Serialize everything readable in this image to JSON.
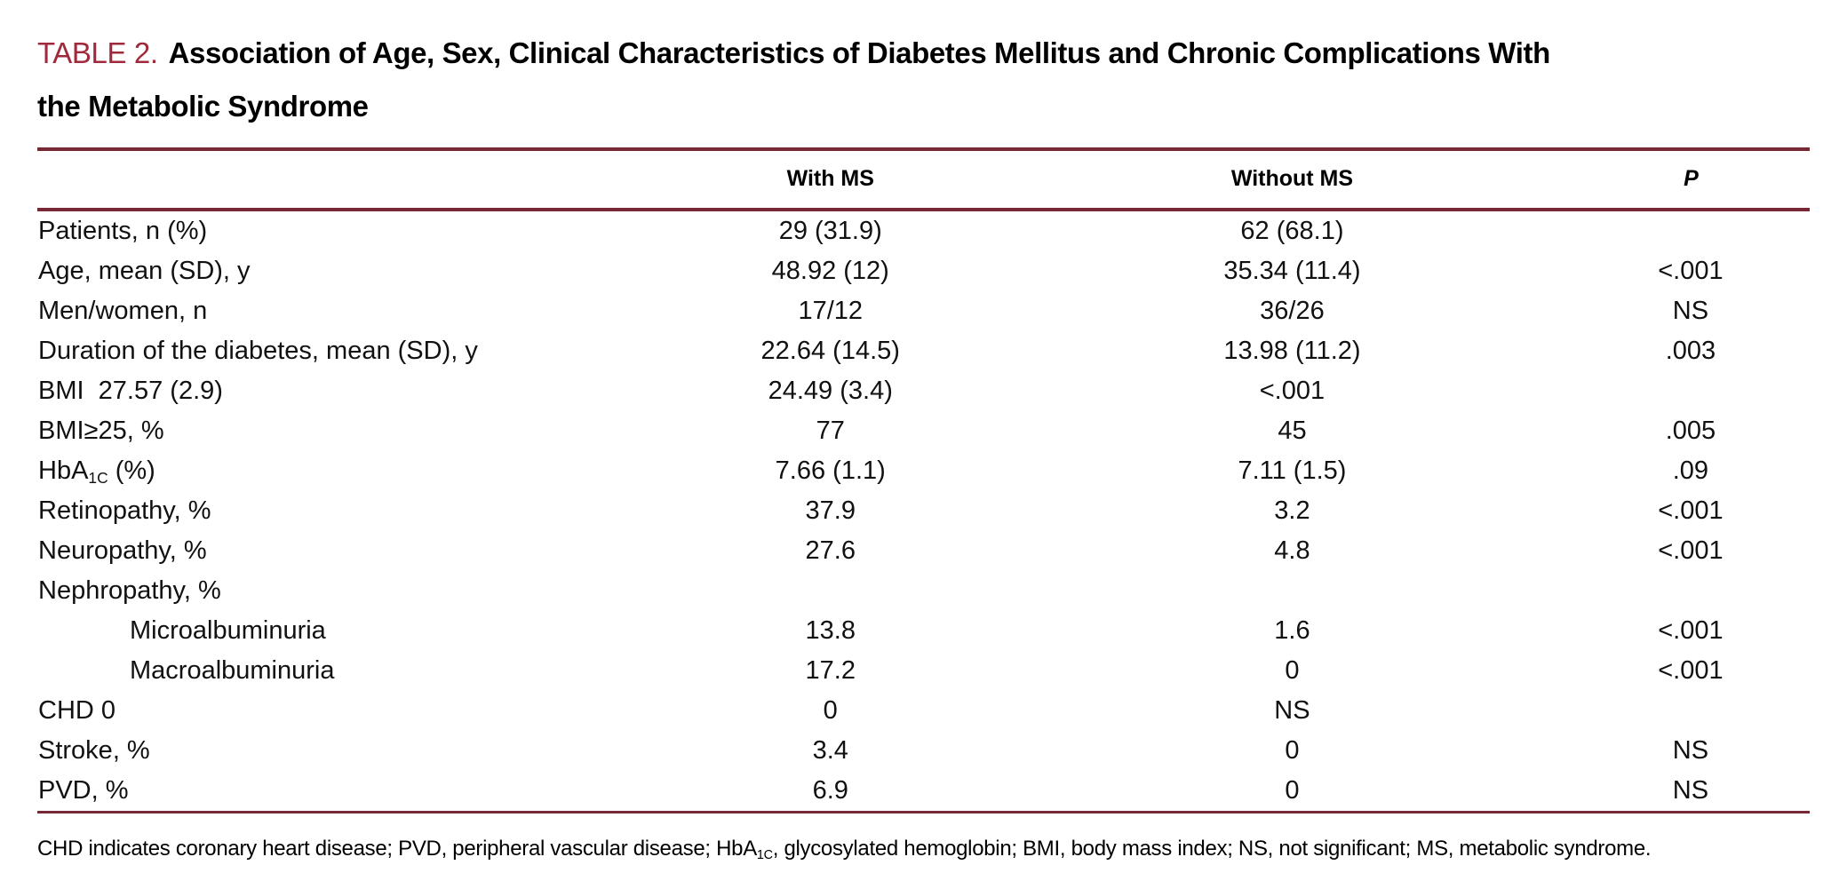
{
  "colors": {
    "accent_maroon_title": "#a02a3c",
    "rule_maroon": "#772836",
    "text": "#111111",
    "background": "#ffffff"
  },
  "title": {
    "label": "TABLE 2.",
    "line1": "Association of Age, Sex, Clinical Characteristics of Diabetes Mellitus and Chronic Complications With",
    "line2": "the Metabolic Syndrome"
  },
  "table": {
    "header": {
      "row_label": "",
      "with_ms": "With MS",
      "without_ms": "Without MS",
      "p": "P"
    },
    "rows": [
      {
        "label": [
          {
            "t": "Patients, n (%)"
          }
        ],
        "indent": false,
        "with_ms": "29 (31.9)",
        "without_ms": "62 (68.1)",
        "p": ""
      },
      {
        "label": [
          {
            "t": "Age, mean (SD), y"
          }
        ],
        "indent": false,
        "with_ms": "48.92 (12)",
        "without_ms": "35.34 (11.4)",
        "p": "<.001"
      },
      {
        "label": [
          {
            "t": "Men/women, n"
          }
        ],
        "indent": false,
        "with_ms": "17/12",
        "without_ms": "36/26",
        "p": "NS"
      },
      {
        "label": [
          {
            "t": "Duration of the diabetes, mean (SD), y"
          }
        ],
        "indent": false,
        "with_ms": "22.64 (14.5)",
        "without_ms": "13.98 (11.2)",
        "p": ".003"
      },
      {
        "label": [
          {
            "t": "BMI  27.57 (2.9)"
          }
        ],
        "indent": false,
        "with_ms": "24.49 (3.4)",
        "without_ms": "<.001",
        "p": ""
      },
      {
        "label": [
          {
            "t": "BMI≥25, %"
          }
        ],
        "indent": false,
        "with_ms": "77",
        "without_ms": "45",
        "p": ".005"
      },
      {
        "label": [
          {
            "t": "HbA"
          },
          {
            "t": "1C",
            "sub": true
          },
          {
            "t": " (%)"
          }
        ],
        "indent": false,
        "with_ms": "7.66 (1.1)",
        "without_ms": "7.11 (1.5)",
        "p": ".09"
      },
      {
        "label": [
          {
            "t": "Retinopathy, %"
          }
        ],
        "indent": false,
        "with_ms": "37.9",
        "without_ms": "3.2",
        "p": "<.001"
      },
      {
        "label": [
          {
            "t": "Neuropathy, %"
          }
        ],
        "indent": false,
        "with_ms": "27.6",
        "without_ms": "4.8",
        "p": "<.001"
      },
      {
        "label": [
          {
            "t": "Nephropathy, %"
          }
        ],
        "indent": false,
        "with_ms": "",
        "without_ms": "",
        "p": ""
      },
      {
        "label": [
          {
            "t": "Microalbuminuria"
          }
        ],
        "indent": true,
        "with_ms": "13.8",
        "without_ms": "1.6",
        "p": "<.001"
      },
      {
        "label": [
          {
            "t": "Macroalbuminuria"
          }
        ],
        "indent": true,
        "with_ms": "17.2",
        "without_ms": "0",
        "p": "<.001"
      },
      {
        "label": [
          {
            "t": "CHD 0"
          }
        ],
        "indent": false,
        "with_ms": "0",
        "without_ms": "NS",
        "p": ""
      },
      {
        "label": [
          {
            "t": "Stroke, %"
          }
        ],
        "indent": false,
        "with_ms": "3.4",
        "without_ms": "0",
        "p": "NS"
      },
      {
        "label": [
          {
            "t": "PVD, %"
          }
        ],
        "indent": false,
        "with_ms": "6.9",
        "without_ms": "0",
        "p": "NS"
      }
    ]
  },
  "footnote": [
    {
      "t": "CHD indicates coronary heart disease; PVD, peripheral vascular disease; HbA"
    },
    {
      "t": "1C",
      "sub": true
    },
    {
      "t": ", glycosylated hemoglobin; BMI, body mass index; NS, not significant; MS, metabolic syndrome."
    }
  ]
}
